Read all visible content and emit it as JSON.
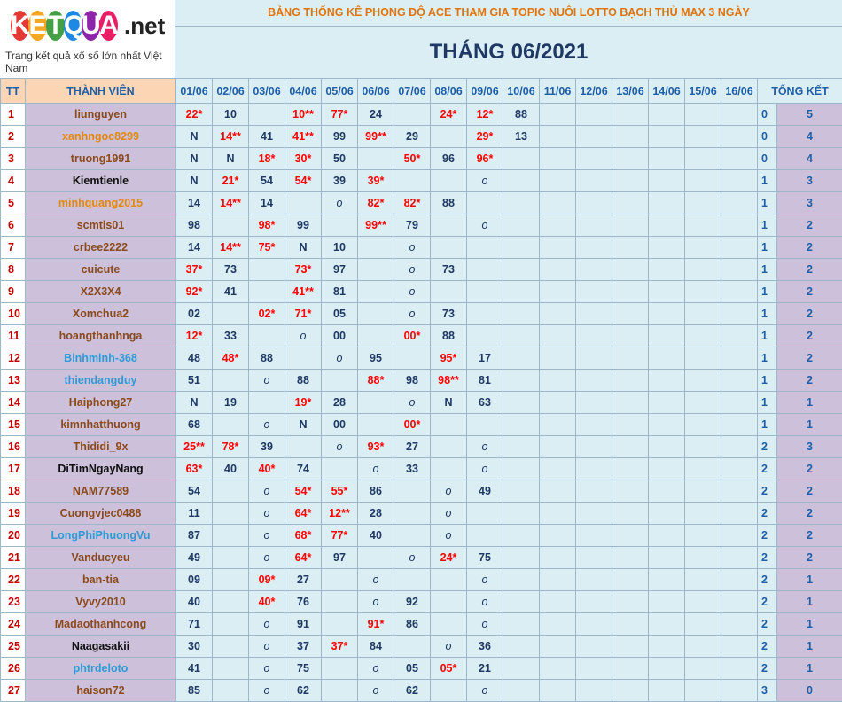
{
  "logo": {
    "brand": "KETQUA",
    "domain": ".net",
    "tagline": "Trang kết quả xổ số lớn nhất Việt Nam"
  },
  "header": {
    "title": "BẢNG THỐNG KÊ PHONG ĐỘ ACE THAM GIA TOPIC NUÔI LOTTO BẠCH THỦ MAX 3 NGÀY",
    "month": "THÁNG 06/2021",
    "tt": "TT",
    "member": "THÀNH VIÊN",
    "total": "TỔNG KẾT",
    "dates": [
      "01/06",
      "02/06",
      "03/06",
      "04/06",
      "05/06",
      "06/06",
      "07/06",
      "08/06",
      "09/06",
      "10/06",
      "11/06",
      "12/06",
      "13/06",
      "14/06",
      "15/06",
      "16/06"
    ]
  },
  "rows": [
    {
      "tt": "1",
      "name": "liunguyen",
      "color": "#8b4a1c",
      "cells": [
        "22*",
        "10",
        null,
        "10**",
        "77*",
        "24",
        null,
        "24*",
        "12*",
        "88"
      ],
      "tong_ket": [
        "0",
        "5"
      ]
    },
    {
      "tt": "2",
      "name": "xanhngoc8299",
      "color": "#e2880a",
      "cells": [
        "N",
        "14**",
        "41",
        "41**",
        "99",
        "99**",
        "29",
        null,
        "29*",
        "13"
      ],
      "tong_ket": [
        "0",
        "4"
      ]
    },
    {
      "tt": "3",
      "name": "truong1991",
      "color": "#8b4a1c",
      "cells": [
        "N",
        "N",
        "18*",
        "30*",
        "50",
        null,
        "50*",
        "96",
        "96*",
        null
      ],
      "tong_ket": [
        "0",
        "4"
      ]
    },
    {
      "tt": "4",
      "name": "Kiemtienle",
      "color": "#111111",
      "cells": [
        "N",
        "21*",
        "54",
        "54*",
        "39",
        "39*",
        null,
        null,
        "o",
        null
      ],
      "tong_ket": [
        "1",
        "3"
      ]
    },
    {
      "tt": "5",
      "name": "minhquang2015",
      "color": "#e2880a",
      "cells": [
        "14",
        "14**",
        "14",
        null,
        "o",
        "82*",
        "82*",
        "88",
        null,
        null
      ],
      "tong_ket": [
        "1",
        "3"
      ]
    },
    {
      "tt": "6",
      "name": "scmtls01",
      "color": "#8b4a1c",
      "cells": [
        "98",
        null,
        "98*",
        "99",
        null,
        "99**",
        "79",
        null,
        "o",
        null
      ],
      "tong_ket": [
        "1",
        "2"
      ]
    },
    {
      "tt": "7",
      "name": "crbee2222",
      "color": "#8b4a1c",
      "cells": [
        "14",
        "14**",
        "75*",
        "N",
        "10",
        null,
        "o",
        null,
        null,
        null
      ],
      "tong_ket": [
        "1",
        "2"
      ]
    },
    {
      "tt": "8",
      "name": "cuicute",
      "color": "#8b4a1c",
      "cells": [
        "37*",
        "73",
        null,
        "73*",
        "97",
        null,
        "o",
        "73",
        null,
        null
      ],
      "tong_ket": [
        "1",
        "2"
      ]
    },
    {
      "tt": "9",
      "name": "X2X3X4",
      "color": "#8b4a1c",
      "cells": [
        "92*",
        "41",
        null,
        "41**",
        "81",
        null,
        "o",
        null,
        null,
        null
      ],
      "tong_ket": [
        "1",
        "2"
      ]
    },
    {
      "tt": "10",
      "name": "Xomchua2",
      "color": "#8b4a1c",
      "cells": [
        "02",
        null,
        "02*",
        "71*",
        "05",
        null,
        "o",
        "73",
        null,
        null
      ],
      "tong_ket": [
        "1",
        "2"
      ]
    },
    {
      "tt": "11",
      "name": "hoangthanhnga",
      "color": "#8b4a1c",
      "cells": [
        "12*",
        "33",
        null,
        "o",
        "00",
        null,
        "00*",
        "88",
        null,
        null
      ],
      "tong_ket": [
        "1",
        "2"
      ]
    },
    {
      "tt": "12",
      "name": "Binhminh-368",
      "color": "#2e9ad6",
      "cells": [
        "48",
        "48*",
        "88",
        null,
        "o",
        "95",
        null,
        "95*",
        "17",
        null
      ],
      "tong_ket": [
        "1",
        "2"
      ]
    },
    {
      "tt": "13",
      "name": "thiendangduy",
      "color": "#2e9ad6",
      "cells": [
        "51",
        null,
        "o",
        "88",
        null,
        "88*",
        "98",
        "98**",
        "81",
        null
      ],
      "tong_ket": [
        "1",
        "2"
      ]
    },
    {
      "tt": "14",
      "name": "Haiphong27",
      "color": "#8b4a1c",
      "cells": [
        "N",
        "19",
        null,
        "19*",
        "28",
        null,
        "o",
        "N",
        "63",
        null
      ],
      "tong_ket": [
        "1",
        "1"
      ]
    },
    {
      "tt": "15",
      "name": "kimnhatthuong",
      "color": "#8b4a1c",
      "cells": [
        "68",
        null,
        "o",
        "N",
        "00",
        null,
        "00*",
        null,
        null,
        null
      ],
      "tong_ket": [
        "1",
        "1"
      ]
    },
    {
      "tt": "16",
      "name": "Thididi_9x",
      "color": "#8b4a1c",
      "cells": [
        "25**",
        "78*",
        "39",
        null,
        "o",
        "93*",
        "27",
        null,
        "o",
        null
      ],
      "tong_ket": [
        "2",
        "3"
      ]
    },
    {
      "tt": "17",
      "name": "DiTimNgayNang",
      "color": "#111111",
      "cells": [
        "63*",
        "40",
        "40*",
        "74",
        null,
        "o",
        "33",
        null,
        "o",
        null
      ],
      "tong_ket": [
        "2",
        "2"
      ]
    },
    {
      "tt": "18",
      "name": "NAM77589",
      "color": "#8b4a1c",
      "cells": [
        "54",
        null,
        "o",
        "54*",
        "55*",
        "86",
        null,
        "o",
        "49",
        null
      ],
      "tong_ket": [
        "2",
        "2"
      ]
    },
    {
      "tt": "19",
      "name": "Cuongvjec0488",
      "color": "#8b4a1c",
      "cells": [
        "11",
        null,
        "o",
        "64*",
        "12**",
        "28",
        null,
        "o",
        null,
        null
      ],
      "tong_ket": [
        "2",
        "2"
      ]
    },
    {
      "tt": "20",
      "name": "LongPhiPhuongVu",
      "color": "#2e9ad6",
      "cells": [
        "87",
        null,
        "o",
        "68*",
        "77*",
        "40",
        null,
        "o",
        null,
        null
      ],
      "tong_ket": [
        "2",
        "2"
      ]
    },
    {
      "tt": "21",
      "name": "Vanducyeu",
      "color": "#8b4a1c",
      "cells": [
        "49",
        null,
        "o",
        "64*",
        "97",
        null,
        "o",
        "24*",
        "75",
        null
      ],
      "tong_ket": [
        "2",
        "2"
      ]
    },
    {
      "tt": "22",
      "name": "ban-tia",
      "color": "#8b4a1c",
      "cells": [
        "09",
        null,
        "09*",
        "27",
        null,
        "o",
        null,
        null,
        "o",
        null
      ],
      "tong_ket": [
        "2",
        "1"
      ]
    },
    {
      "tt": "23",
      "name": "Vyvy2010",
      "color": "#8b4a1c",
      "cells": [
        "40",
        null,
        "40*",
        "76",
        null,
        "o",
        "92",
        null,
        "o",
        null
      ],
      "tong_ket": [
        "2",
        "1"
      ]
    },
    {
      "tt": "24",
      "name": "Madaothanhcong",
      "color": "#8b4a1c",
      "cells": [
        "71",
        null,
        "o",
        "91",
        null,
        "91*",
        "86",
        null,
        "o",
        null
      ],
      "tong_ket": [
        "2",
        "1"
      ]
    },
    {
      "tt": "25",
      "name": "Naagasakii",
      "color": "#111111",
      "cells": [
        "30",
        null,
        "o",
        "37",
        "37*",
        "84",
        null,
        "o",
        "36",
        null
      ],
      "tong_ket": [
        "2",
        "1"
      ]
    },
    {
      "tt": "26",
      "name": "phtrdeloto",
      "color": "#2e9ad6",
      "cells": [
        "41",
        null,
        "o",
        "75",
        null,
        "o",
        "05",
        "05*",
        "21",
        null
      ],
      "tong_ket": [
        "2",
        "1"
      ]
    },
    {
      "tt": "27",
      "name": "haison72",
      "color": "#8b4a1c",
      "cells": [
        "85",
        null,
        "o",
        "62",
        null,
        "o",
        "62",
        null,
        "o",
        null
      ],
      "tong_ket": [
        "3",
        "0"
      ]
    }
  ]
}
